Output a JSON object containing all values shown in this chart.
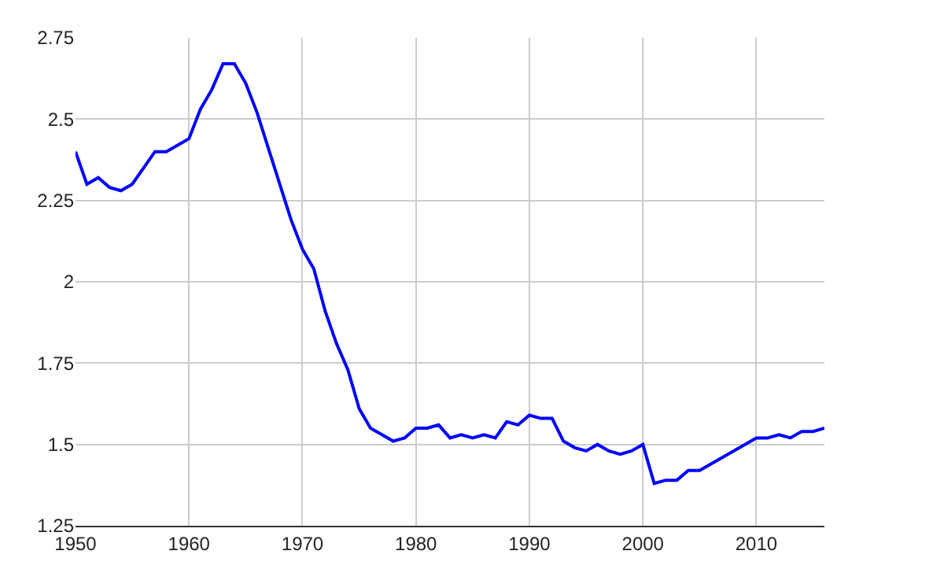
{
  "chart_data": {
    "type": "line",
    "x": [
      1950,
      1951,
      1952,
      1953,
      1954,
      1955,
      1956,
      1957,
      1958,
      1960,
      1961,
      1962,
      1963,
      1964,
      1965,
      1966,
      1967,
      1968,
      1969,
      1970,
      1971,
      1972,
      1973,
      1974,
      1975,
      1976,
      1977,
      1978,
      1979,
      1980,
      1981,
      1982,
      1983,
      1984,
      1985,
      1986,
      1987,
      1988,
      1989,
      1990,
      1991,
      1992,
      1993,
      1994,
      1995,
      1996,
      1997,
      1998,
      1999,
      2000,
      2001,
      2002,
      2003,
      2004,
      2005,
      2010,
      2011,
      2012,
      2013,
      2014,
      2015,
      2016
    ],
    "series": [
      {
        "color": "#0000ff",
        "values": [
          2.4,
          2.3,
          2.32,
          2.29,
          2.28,
          2.3,
          2.35,
          2.4,
          2.4,
          2.44,
          2.53,
          2.59,
          2.67,
          2.67,
          2.61,
          2.52,
          2.41,
          2.3,
          2.19,
          2.1,
          2.04,
          1.91,
          1.81,
          1.73,
          1.61,
          1.55,
          1.53,
          1.51,
          1.52,
          1.55,
          1.55,
          1.56,
          1.52,
          1.53,
          1.52,
          1.53,
          1.52,
          1.57,
          1.56,
          1.59,
          1.58,
          1.58,
          1.51,
          1.49,
          1.48,
          1.5,
          1.48,
          1.47,
          1.48,
          1.5,
          1.38,
          1.39,
          1.39,
          1.42,
          1.42,
          1.52,
          1.52,
          1.53,
          1.52,
          1.54,
          1.54,
          1.55
        ]
      }
    ],
    "xlim": [
      1950,
      2016
    ],
    "xticks": [
      1950,
      1960,
      1970,
      1980,
      1990,
      2000,
      2010
    ],
    "ylim": [
      1.25,
      2.75
    ],
    "yticks": [
      1.25,
      1.5,
      1.75,
      2,
      2.25,
      2.5,
      2.75
    ],
    "grid": true,
    "marker": "none",
    "line_style": "solid"
  }
}
